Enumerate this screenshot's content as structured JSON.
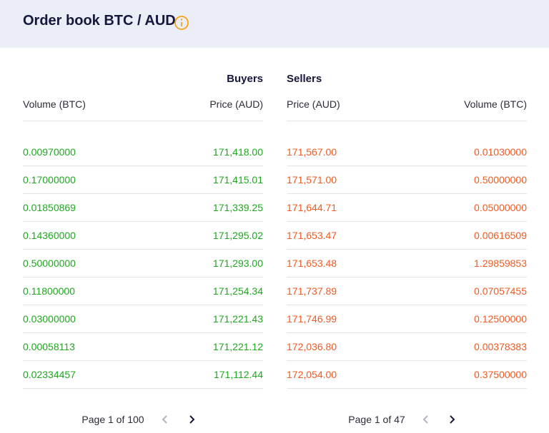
{
  "header": {
    "title": "Order book BTC / AUD"
  },
  "buyers": {
    "heading": "Buyers",
    "columns": [
      "Volume (BTC)",
      "Price (AUD)"
    ],
    "rows": [
      [
        "0.00970000",
        "171,418.00"
      ],
      [
        "0.17000000",
        "171,415.01"
      ],
      [
        "0.01850869",
        "171,339.25"
      ],
      [
        "0.14360000",
        "171,295.02"
      ],
      [
        "0.50000000",
        "171,293.00"
      ],
      [
        "0.11800000",
        "171,254.34"
      ],
      [
        "0.03000000",
        "171,221.43"
      ],
      [
        "0.00058113",
        "171,221.12"
      ],
      [
        "0.02334457",
        "171,112.44"
      ]
    ],
    "pagination": "Page 1 of 100"
  },
  "sellers": {
    "heading": "Sellers",
    "columns": [
      "Price (AUD)",
      "Volume (BTC)"
    ],
    "rows": [
      [
        "171,567.00",
        "0.01030000"
      ],
      [
        "171,571.00",
        "0.50000000"
      ],
      [
        "171,644.71",
        "0.05000000"
      ],
      [
        "171,653.47",
        "0.00616509"
      ],
      [
        "171,653.48",
        "1.29859853"
      ],
      [
        "171,737.89",
        "0.07057455"
      ],
      [
        "171,746.99",
        "0.12500000"
      ],
      [
        "172,036.80",
        "0.00378383"
      ],
      [
        "172,054.00",
        "0.37500000"
      ]
    ],
    "pagination": "Page 1 of 47"
  }
}
